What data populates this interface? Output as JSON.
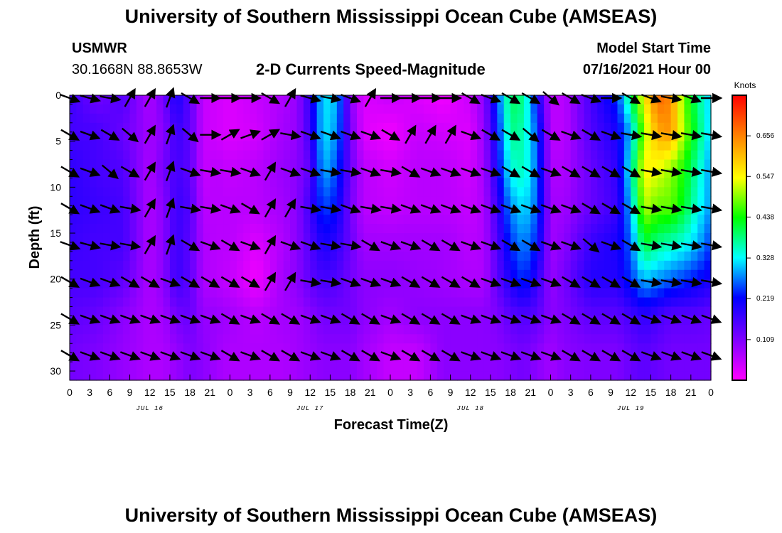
{
  "page": {
    "title_top": "University of Southern Mississippi Ocean Cube (AMSEAS)",
    "title_bottom": "University of Southern Mississippi Ocean Cube (AMSEAS)",
    "station": "USMWR",
    "location": "30.1668N  88.8653W",
    "model_start_label": "Model Start Time",
    "model_start_value": "07/16/2021 Hour 00"
  },
  "chart_data": {
    "type": "heatmap",
    "title": "2-D Currents Speed-Magnitude",
    "xlabel": "Forecast Time(Z)",
    "ylabel": "Depth (ft)",
    "colorbar_label": "Knots",
    "colorbar_ticks": [
      "0.109",
      "0.219",
      "0.328",
      "0.438",
      "0.547",
      "0.656"
    ],
    "colorbar_range": [
      0.0,
      0.765
    ],
    "colors": [
      "#ff00ff",
      "#8000ff",
      "#0000ff",
      "#00ffff",
      "#00ff00",
      "#ffff00",
      "#ff8000",
      "#ff0000"
    ],
    "x_hours_range": [
      0,
      96
    ],
    "x_tick_labels": [
      "0",
      "3",
      "6",
      "9",
      "12",
      "15",
      "18",
      "21",
      "0",
      "3",
      "6",
      "9",
      "12",
      "15",
      "18",
      "21",
      "0",
      "3",
      "6",
      "9",
      "12",
      "15",
      "18",
      "21",
      "0",
      "3",
      "6",
      "9",
      "12",
      "15",
      "18",
      "21",
      "0"
    ],
    "day_labels": [
      {
        "label": "JUL 16",
        "hour": 12
      },
      {
        "label": "JUL 17",
        "hour": 36
      },
      {
        "label": "JUL 18",
        "hour": 60
      },
      {
        "label": "JUL 19",
        "hour": 84
      }
    ],
    "y_range": [
      0,
      31
    ],
    "y_ticks": [
      0,
      5,
      10,
      15,
      20,
      25,
      30
    ],
    "depths": [
      0,
      4,
      8,
      12,
      16,
      20,
      24,
      28
    ],
    "speed_hours": [
      0,
      4,
      8,
      12,
      14,
      16,
      18,
      20,
      22,
      24,
      28,
      32,
      34,
      36,
      38,
      40,
      42,
      44,
      48,
      52,
      56,
      60,
      62,
      64,
      66,
      68,
      70,
      72,
      74,
      78,
      82,
      84,
      86,
      88,
      90,
      92,
      94,
      96
    ],
    "speed_knots": [
      [
        0.17,
        0.12,
        0.15,
        0.07,
        0.12,
        0.2,
        0.14,
        0.05,
        0.04,
        0.03,
        0.05,
        0.07,
        0.09,
        0.18,
        0.32,
        0.3,
        0.1,
        0.03,
        0.05,
        0.03,
        0.01,
        0.05,
        0.1,
        0.25,
        0.4,
        0.38,
        0.2,
        0.06,
        0.06,
        0.16,
        0.24,
        0.4,
        0.56,
        0.68,
        0.65,
        0.48,
        0.38,
        0.3
      ],
      [
        0.16,
        0.16,
        0.13,
        0.08,
        0.1,
        0.17,
        0.14,
        0.05,
        0.04,
        0.03,
        0.04,
        0.08,
        0.09,
        0.17,
        0.32,
        0.28,
        0.12,
        0.03,
        0.01,
        0.05,
        0.04,
        0.03,
        0.09,
        0.22,
        0.38,
        0.36,
        0.25,
        0.06,
        0.06,
        0.15,
        0.2,
        0.3,
        0.5,
        0.62,
        0.64,
        0.5,
        0.4,
        0.3
      ],
      [
        0.18,
        0.16,
        0.15,
        0.07,
        0.12,
        0.16,
        0.14,
        0.05,
        0.06,
        0.05,
        0.06,
        0.09,
        0.1,
        0.14,
        0.3,
        0.25,
        0.13,
        0.06,
        0.04,
        0.06,
        0.06,
        0.04,
        0.08,
        0.2,
        0.34,
        0.36,
        0.26,
        0.07,
        0.07,
        0.13,
        0.18,
        0.34,
        0.56,
        0.54,
        0.5,
        0.44,
        0.36,
        0.28
      ],
      [
        0.18,
        0.17,
        0.16,
        0.07,
        0.1,
        0.17,
        0.15,
        0.06,
        0.06,
        0.06,
        0.06,
        0.08,
        0.1,
        0.17,
        0.25,
        0.22,
        0.12,
        0.06,
        0.05,
        0.06,
        0.06,
        0.05,
        0.07,
        0.17,
        0.28,
        0.32,
        0.26,
        0.08,
        0.08,
        0.13,
        0.17,
        0.3,
        0.52,
        0.48,
        0.48,
        0.42,
        0.34,
        0.28
      ],
      [
        0.17,
        0.16,
        0.16,
        0.07,
        0.1,
        0.17,
        0.14,
        0.07,
        0.06,
        0.06,
        0.03,
        0.07,
        0.1,
        0.15,
        0.2,
        0.18,
        0.13,
        0.08,
        0.08,
        0.08,
        0.08,
        0.06,
        0.07,
        0.15,
        0.24,
        0.28,
        0.23,
        0.08,
        0.1,
        0.17,
        0.2,
        0.26,
        0.42,
        0.38,
        0.36,
        0.34,
        0.3,
        0.24
      ],
      [
        0.16,
        0.16,
        0.14,
        0.07,
        0.1,
        0.17,
        0.14,
        0.07,
        0.06,
        0.05,
        0.01,
        0.08,
        0.1,
        0.14,
        0.16,
        0.15,
        0.12,
        0.1,
        0.1,
        0.09,
        0.08,
        0.07,
        0.07,
        0.14,
        0.2,
        0.24,
        0.18,
        0.09,
        0.12,
        0.19,
        0.19,
        0.24,
        0.3,
        0.28,
        0.26,
        0.24,
        0.22,
        0.2
      ],
      [
        0.14,
        0.13,
        0.1,
        0.07,
        0.08,
        0.12,
        0.13,
        0.09,
        0.09,
        0.08,
        0.06,
        0.08,
        0.08,
        0.1,
        0.12,
        0.12,
        0.12,
        0.1,
        0.08,
        0.1,
        0.1,
        0.1,
        0.1,
        0.11,
        0.14,
        0.15,
        0.14,
        0.1,
        0.11,
        0.14,
        0.14,
        0.16,
        0.18,
        0.16,
        0.14,
        0.14,
        0.14,
        0.13
      ],
      [
        0.12,
        0.11,
        0.09,
        0.07,
        0.07,
        0.09,
        0.11,
        0.1,
        0.08,
        0.07,
        0.07,
        0.07,
        0.08,
        0.09,
        0.1,
        0.1,
        0.1,
        0.08,
        0.05,
        0.05,
        0.1,
        0.1,
        0.1,
        0.1,
        0.11,
        0.12,
        0.1,
        0.08,
        0.1,
        0.11,
        0.11,
        0.13,
        0.14,
        0.13,
        0.12,
        0.12,
        0.12,
        0.12
      ]
    ],
    "arrow_hours": [
      0,
      3,
      6,
      9,
      12,
      15,
      18,
      21,
      24,
      27,
      30,
      33,
      36,
      39,
      42,
      45,
      48,
      51,
      54,
      57,
      60,
      63,
      66,
      69,
      72,
      75,
      78,
      81,
      84,
      87,
      90,
      93,
      96
    ],
    "arrow_depths": [
      0,
      4,
      8,
      12,
      16,
      20,
      24,
      28
    ],
    "arrow_dir_deg": [
      [
        -20,
        -15,
        -10,
        60,
        60,
        70,
        -30,
        0,
        0,
        0,
        -30,
        60,
        -15,
        -10,
        -20,
        60,
        0,
        0,
        0,
        0,
        -30,
        -20,
        -30,
        -30,
        -40,
        -30,
        -20,
        0,
        -30,
        -20,
        -10,
        -20,
        0
      ],
      [
        -30,
        -20,
        -30,
        -40,
        60,
        70,
        -40,
        0,
        30,
        20,
        30,
        -10,
        -20,
        -20,
        -20,
        -20,
        -30,
        60,
        60,
        60,
        -20,
        -30,
        -30,
        -40,
        -30,
        -20,
        -30,
        -20,
        -10,
        -10,
        -10,
        -10,
        -10
      ],
      [
        -30,
        -20,
        -40,
        -30,
        60,
        70,
        -20,
        -10,
        -10,
        -20,
        60,
        -20,
        -20,
        -10,
        -10,
        -20,
        -10,
        -30,
        -20,
        -20,
        -20,
        -20,
        -30,
        -30,
        -20,
        -30,
        -30,
        -30,
        -30,
        -10,
        -10,
        -10,
        -10
      ],
      [
        -30,
        -20,
        -20,
        -10,
        60,
        70,
        -10,
        -10,
        -20,
        -30,
        60,
        60,
        -10,
        -10,
        -20,
        -10,
        -10,
        -20,
        -20,
        -20,
        -20,
        -20,
        -20,
        -20,
        -20,
        -20,
        -30,
        -30,
        -30,
        -10,
        -10,
        -10,
        -10
      ],
      [
        -20,
        -15,
        -10,
        -10,
        60,
        70,
        -30,
        -20,
        -30,
        -20,
        60,
        -20,
        -20,
        -10,
        -10,
        -30,
        -20,
        -20,
        -30,
        -30,
        -20,
        -20,
        -30,
        -30,
        -20,
        -20,
        -40,
        -20,
        -30,
        -10,
        -10,
        -10,
        -10
      ],
      [
        -30,
        -20,
        -20,
        -30,
        -30,
        -20,
        -30,
        -30,
        -30,
        -30,
        60,
        60,
        -10,
        -10,
        -20,
        -20,
        -20,
        -30,
        -30,
        -30,
        -30,
        -20,
        -20,
        -20,
        -20,
        -30,
        -30,
        -30,
        -30,
        -10,
        -10,
        -10,
        -10
      ],
      [
        -30,
        -20,
        -20,
        -20,
        -20,
        -20,
        -20,
        -20,
        -30,
        -20,
        -30,
        -30,
        -20,
        -20,
        -30,
        -30,
        -20,
        -30,
        -30,
        -30,
        -20,
        -20,
        -20,
        -20,
        -20,
        -30,
        -30,
        -30,
        -30,
        -20,
        -20,
        -20,
        -20
      ],
      [
        -30,
        -20,
        -20,
        -20,
        -20,
        -20,
        -20,
        -20,
        -30,
        -20,
        -30,
        -30,
        -20,
        -20,
        -30,
        -30,
        -20,
        -30,
        -30,
        -30,
        -20,
        -20,
        -20,
        -20,
        -20,
        -30,
        -30,
        -30,
        -30,
        -20,
        -20,
        -20,
        -20
      ]
    ]
  }
}
